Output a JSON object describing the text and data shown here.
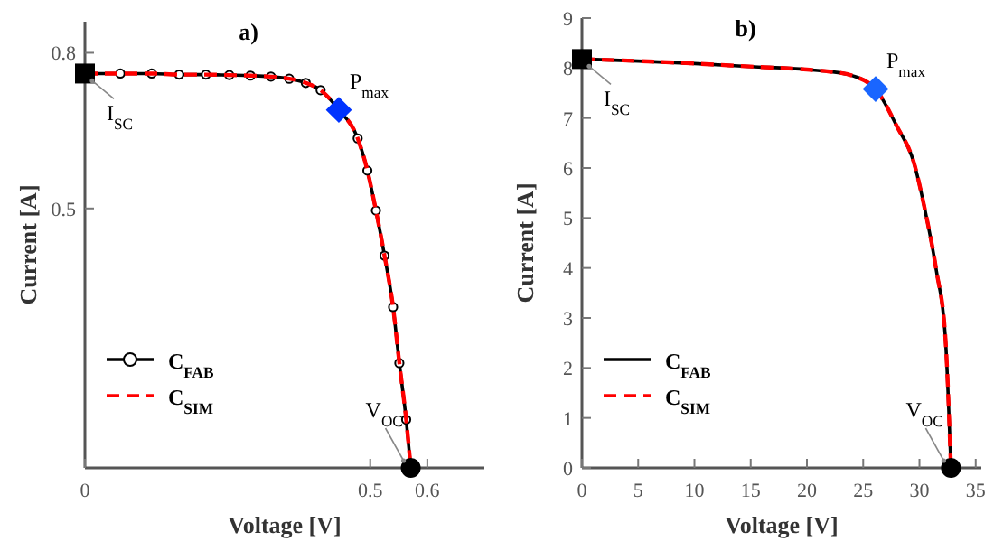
{
  "chart_data": [
    {
      "type": "line",
      "title": "a)",
      "xlabel": "Voltage [V]",
      "ylabel": "Current [A]",
      "xlim": [
        0,
        0.7
      ],
      "ylim": [
        0,
        0.86
      ],
      "xticks": [
        0,
        0.5,
        0.6
      ],
      "yticks": [
        0.5,
        0.8
      ],
      "legend": "bottom left",
      "grid": false,
      "series": [
        {
          "name": "C$_{FAB}$",
          "color": "#000000",
          "marker": "circle",
          "line_style": "solid",
          "x": [
            0,
            0.062,
            0.117,
            0.165,
            0.212,
            0.253,
            0.29,
            0.326,
            0.358,
            0.387,
            0.413,
            0.445,
            0.478,
            0.495,
            0.51,
            0.525,
            0.54,
            0.551,
            0.563,
            0.571
          ],
          "values": [
            0.76,
            0.76,
            0.76,
            0.758,
            0.758,
            0.757,
            0.756,
            0.754,
            0.75,
            0.742,
            0.728,
            0.69,
            0.635,
            0.573,
            0.496,
            0.409,
            0.31,
            0.202,
            0.093,
            0
          ]
        },
        {
          "name": "C$_{SIM}$",
          "color": "#ff0000",
          "marker": "none",
          "line_style": "dashed",
          "x": [
            0,
            0.062,
            0.117,
            0.165,
            0.212,
            0.253,
            0.29,
            0.326,
            0.358,
            0.387,
            0.413,
            0.445,
            0.478,
            0.495,
            0.51,
            0.525,
            0.54,
            0.551,
            0.563,
            0.571
          ],
          "values": [
            0.76,
            0.76,
            0.76,
            0.758,
            0.758,
            0.757,
            0.756,
            0.754,
            0.75,
            0.742,
            0.728,
            0.69,
            0.635,
            0.573,
            0.496,
            0.409,
            0.31,
            0.202,
            0.093,
            0
          ]
        },
        {
          "type": "scatter",
          "color": "#000000",
          "marker": "square",
          "x": [
            0
          ],
          "values": [
            0.76
          ]
        },
        {
          "type": "scatter",
          "color": "#0033ff",
          "marker": "diamond",
          "x": [
            0.445
          ],
          "values": [
            0.69
          ]
        },
        {
          "type": "scatter",
          "color": "#000000",
          "marker": "circle",
          "x": [
            0.571
          ],
          "values": [
            0
          ]
        }
      ],
      "annotations": [
        {
          "text": "I$_{SC}$",
          "x": 0,
          "y": 0.76
        },
        {
          "text": "P$_{max}$",
          "x": 0.445,
          "y": 0.69
        },
        {
          "text": "V$_{OC}$",
          "x": 0.571,
          "y": 0
        }
      ]
    },
    {
      "type": "line",
      "title": "b)",
      "xlabel": "Voltage [V]",
      "ylabel": "Current [A]",
      "xlim": [
        0,
        35.5
      ],
      "ylim": [
        0,
        9
      ],
      "xticks": [
        0,
        5,
        10,
        15,
        20,
        25,
        30,
        35
      ],
      "yticks": [
        0,
        1,
        2,
        3,
        4,
        5,
        6,
        7,
        8,
        9
      ],
      "legend": "bottom left",
      "grid": false,
      "series": [
        {
          "name": "C$_{FAB}$",
          "color": "#000000",
          "marker": "none",
          "line_style": "solid",
          "x": [
            0,
            5,
            10,
            15,
            20,
            22,
            24,
            26.1,
            28,
            29.5,
            30.5,
            31.5,
            32.3,
            32.8
          ],
          "values": [
            8.18,
            8.14,
            8.09,
            8.03,
            7.97,
            7.93,
            7.85,
            7.58,
            6.83,
            6.11,
            5.15,
            3.95,
            2.62,
            0
          ]
        },
        {
          "name": "C$_{SIM}$",
          "color": "#ff0000",
          "marker": "none",
          "line_style": "dashed",
          "x": [
            0,
            5,
            10,
            15,
            20,
            22,
            24,
            26.1,
            28,
            29.5,
            30.5,
            31.5,
            32.3,
            32.8
          ],
          "values": [
            8.18,
            8.14,
            8.09,
            8.03,
            7.97,
            7.93,
            7.85,
            7.58,
            6.83,
            6.11,
            5.15,
            3.95,
            2.62,
            0
          ]
        },
        {
          "type": "scatter",
          "color": "#000000",
          "marker": "square",
          "x": [
            0
          ],
          "values": [
            8.18
          ]
        },
        {
          "type": "scatter",
          "color": "#1a66ff",
          "marker": "diamond",
          "x": [
            26.1
          ],
          "values": [
            7.58
          ]
        },
        {
          "type": "scatter",
          "color": "#000000",
          "marker": "circle",
          "x": [
            32.8
          ],
          "values": [
            0
          ]
        }
      ],
      "annotations": [
        {
          "text": "I$_{SC}$",
          "x": 0,
          "y": 8.18
        },
        {
          "text": "P$_{max}$",
          "x": 26.1,
          "y": 7.58
        },
        {
          "text": "V$_{OC}$",
          "x": 32.8,
          "y": 0
        }
      ]
    }
  ]
}
